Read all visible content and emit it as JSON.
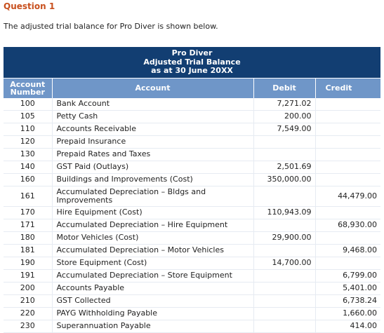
{
  "question": {
    "title": "Question 1",
    "intro": "The adjusted trial balance for Pro Diver is shown below."
  },
  "table": {
    "company": "Pro Diver",
    "report": "Adjusted Trial Balance",
    "date": "as at 30 June 20XX",
    "headers": {
      "number_line1": "Account",
      "number_line2": "Number",
      "account": "Account",
      "debit": "Debit",
      "credit": "Credit"
    },
    "rows": [
      {
        "num": "100",
        "account": "Bank Account",
        "debit": "7,271.02",
        "credit": ""
      },
      {
        "num": "105",
        "account": "Petty Cash",
        "debit": "200.00",
        "credit": ""
      },
      {
        "num": "110",
        "account": "Accounts Receivable",
        "debit": "7,549.00",
        "credit": ""
      },
      {
        "num": "120",
        "account": "Prepaid Insurance",
        "debit": "",
        "credit": ""
      },
      {
        "num": "130",
        "account": "Prepaid Rates and Taxes",
        "debit": "",
        "credit": ""
      },
      {
        "num": "140",
        "account": "GST Paid (Outlays)",
        "debit": "2,501.69",
        "credit": ""
      },
      {
        "num": "160",
        "account": "Buildings and Improvements (Cost)",
        "debit": "350,000.00",
        "credit": ""
      },
      {
        "num": "161",
        "account": "Accumulated Depreciation – Bldgs and Improvements",
        "debit": "",
        "credit": "44,479.00"
      },
      {
        "num": "170",
        "account": "Hire Equipment (Cost)",
        "debit": "110,943.09",
        "credit": ""
      },
      {
        "num": "171",
        "account": "Accumulated Depreciation – Hire Equipment",
        "debit": "",
        "credit": "68,930.00"
      },
      {
        "num": "180",
        "account": "Motor Vehicles (Cost)",
        "debit": "29,900.00",
        "credit": ""
      },
      {
        "num": "181",
        "account": "Accumulated Depreciation – Motor Vehicles",
        "debit": "",
        "credit": "9,468.00"
      },
      {
        "num": "190",
        "account": "Store Equipment (Cost)",
        "debit": "14,700.00",
        "credit": ""
      },
      {
        "num": "191",
        "account": "Accumulated Depreciation – Store Equipment",
        "debit": "",
        "credit": "6,799.00"
      },
      {
        "num": "200",
        "account": "Accounts Payable",
        "debit": "",
        "credit": "5,401.00"
      },
      {
        "num": "210",
        "account": "GST Collected",
        "debit": "",
        "credit": "6,738.24"
      },
      {
        "num": "220",
        "account": "PAYG Withholding Payable",
        "debit": "",
        "credit": "1,660.00"
      },
      {
        "num": "230",
        "account": "Superannuation Payable",
        "debit": "",
        "credit": "414.00"
      }
    ]
  },
  "colors": {
    "title_orange": "#c8501e",
    "banner_navy": "#123e72",
    "header_blue": "#6f96c8"
  }
}
